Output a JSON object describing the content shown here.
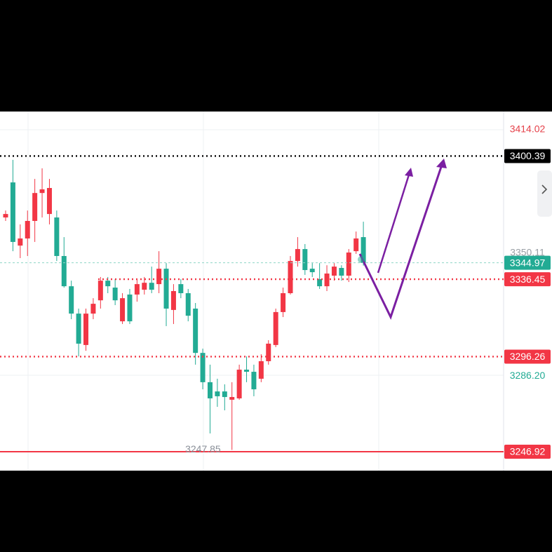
{
  "chart_data": {
    "type": "candlestick",
    "up_color": "#f23645",
    "down_color": "#22ab94",
    "ylim": [
      3237.09,
      3423.49
    ],
    "open": [
      3368.5,
      3386.7,
      3353.9,
      3357.6,
      3366.7,
      3381.2,
      3370.3,
      3368.5,
      3348.5,
      3332.8,
      3318.6,
      3302.3,
      3318.6,
      3325.5,
      3335.7,
      3332.1,
      3314.6,
      3328.5,
      3328.5,
      3331.0,
      3334.6,
      3333.9,
      3341.9,
      3320.5,
      3333.9,
      3329.2,
      3321.2,
      3298.2,
      3283.0,
      3278.2,
      3278.2,
      3273.9,
      3274.6,
      3289.5,
      3288.4,
      3284.8,
      3293.9,
      3302.3,
      3319.4,
      3329.2,
      3345.9,
      3352.1,
      3341.9,
      3336.5,
      3332.8,
      3338.3,
      3342.3,
      3338.3,
      3351.0,
      3358.3
    ],
    "high": [
      3372.1,
      3398.4,
      3364.9,
      3372.1,
      3388.5,
      3394.0,
      3388.5,
      3372.1,
      3358.3,
      3335.7,
      3321.2,
      3321.2,
      3326.6,
      3337.6,
      3337.6,
      3336.5,
      3329.2,
      3331.4,
      3336.5,
      3337.6,
      3343.0,
      3351.0,
      3344.8,
      3333.9,
      3336.5,
      3331.4,
      3324.1,
      3300.4,
      3292.1,
      3284.8,
      3281.9,
      3283.0,
      3292.1,
      3296.4,
      3292.1,
      3297.5,
      3304.8,
      3321.2,
      3332.1,
      3348.5,
      3358.3,
      3354.7,
      3344.8,
      3344.8,
      3343.7,
      3344.8,
      3343.7,
      3352.1,
      3361.2,
      3366.3
    ],
    "low": [
      3366.7,
      3351.0,
      3347.4,
      3348.5,
      3355.8,
      3368.5,
      3364.9,
      3345.9,
      3332.1,
      3315.7,
      3296.4,
      3299.3,
      3315.7,
      3321.2,
      3329.2,
      3323.0,
      3313.2,
      3313.2,
      3324.8,
      3328.5,
      3329.2,
      3329.2,
      3312.1,
      3313.2,
      3326.6,
      3314.6,
      3292.1,
      3279.3,
      3256.4,
      3270.2,
      3268.4,
      3247.85,
      3273.9,
      3283.0,
      3275.7,
      3283.0,
      3292.1,
      3301.2,
      3316.8,
      3328.5,
      3343.0,
      3338.7,
      3337.6,
      3331.4,
      3330.3,
      3335.7,
      3335.7,
      3335.0,
      3349.6,
      3343.5
    ],
    "close": [
      3370.3,
      3355.8,
      3357.6,
      3366.7,
      3381.2,
      3383.1,
      3383.8,
      3348.5,
      3332.8,
      3318.6,
      3303.0,
      3318.6,
      3323.7,
      3335.7,
      3332.8,
      3325.5,
      3326.6,
      3314.6,
      3333.9,
      3334.6,
      3331.0,
      3341.9,
      3321.2,
      3330.3,
      3329.2,
      3317.5,
      3298.2,
      3283.0,
      3274.6,
      3275.7,
      3275.3,
      3275.3,
      3289.5,
      3288.4,
      3279.3,
      3293.9,
      3303.0,
      3319.4,
      3329.2,
      3345.9,
      3352.1,
      3341.2,
      3340.1,
      3332.8,
      3339.4,
      3343.0,
      3338.3,
      3350.3,
      3357.6,
      3344.97
    ],
    "low_label": {
      "value": 3247.85,
      "label": "3247.85"
    },
    "price_labels": [
      {
        "value": 3414.02,
        "label": "3414.02",
        "style": "text",
        "color": "#e5414a"
      },
      {
        "value": 3400.39,
        "label": "3400.39",
        "style": "box",
        "color": "#000000",
        "line": "dotted"
      },
      {
        "value": 3350.11,
        "label": "3350.11",
        "style": "text",
        "color": "#9aa0a6"
      },
      {
        "value": 3344.97,
        "label": "3344.97",
        "style": "box",
        "color": "#22ab94",
        "line": "dashed"
      },
      {
        "value": 3336.45,
        "label": "3336.45",
        "style": "box",
        "color": "#f23645",
        "line": "dotted"
      },
      {
        "value": 3296.26,
        "label": "3296.26",
        "style": "box",
        "color": "#f23645",
        "line": "dotted"
      },
      {
        "value": 3286.2,
        "label": "3286.20",
        "style": "text",
        "color": "#22ab94"
      },
      {
        "value": 3246.92,
        "label": "3246.92",
        "style": "box",
        "color": "#f23645",
        "line": "solid"
      }
    ]
  }
}
